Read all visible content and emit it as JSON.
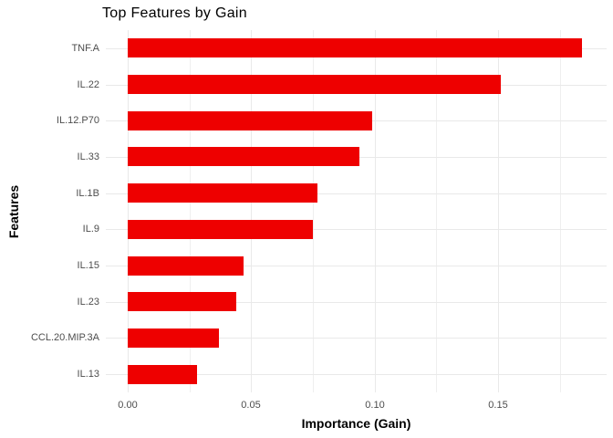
{
  "chart_data": {
    "type": "bar",
    "orientation": "horizontal",
    "title": "Top Features by Gain",
    "xlabel": "Importance (Gain)",
    "ylabel": "Features",
    "categories": [
      "TNF.A",
      "IL.22",
      "IL.12.P70",
      "IL.33",
      "IL.1B",
      "IL.9",
      "IL.15",
      "IL.23",
      "CCL.20.MIP.3A",
      "IL.13"
    ],
    "values": [
      0.184,
      0.151,
      0.099,
      0.094,
      0.077,
      0.075,
      0.047,
      0.044,
      0.037,
      0.028
    ],
    "x_tick_labels": [
      "0.00",
      "0.05",
      "0.10",
      "0.15"
    ],
    "x_tick_values": [
      0,
      0.05,
      0.1,
      0.15
    ],
    "x_minor_tick_values": [
      0.025,
      0.075,
      0.125,
      0.175
    ],
    "xlim": [
      0,
      0.194
    ],
    "grid": true,
    "legend": false,
    "colors": {
      "bar": "#ee0000",
      "grid_major": "#e9e9e9",
      "grid_minor": "#efefef",
      "axis_text": "#4d4d4d",
      "title_text": "#000000",
      "background": "#ffffff"
    }
  }
}
